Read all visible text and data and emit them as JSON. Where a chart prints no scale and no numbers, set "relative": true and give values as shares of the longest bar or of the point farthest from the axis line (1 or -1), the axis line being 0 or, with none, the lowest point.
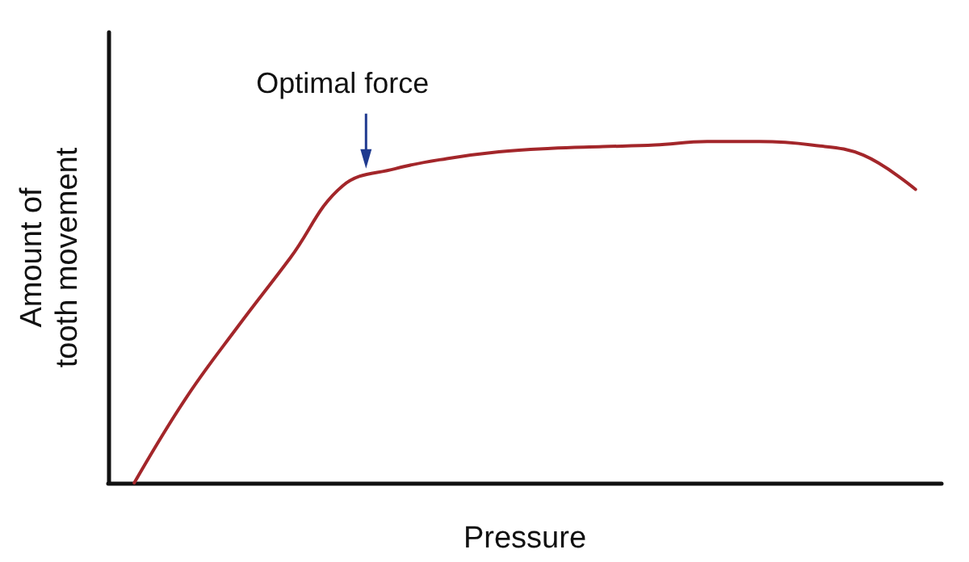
{
  "chart_data": {
    "type": "line",
    "relative": true,
    "xlabel": "Pressure",
    "ylabel": "Amount of tooth movement",
    "categories": [
      null,
      null,
      null,
      null,
      null,
      null,
      null,
      null,
      null,
      null,
      null,
      null,
      null,
      null,
      null,
      null
    ],
    "series": [
      {
        "color": "#a3262a",
        "values": [
          0,
          0.25,
          0.46,
          0.66,
          0.87,
          0.92,
          0.95,
          0.97,
          0.98,
          0.985,
          0.99,
          1,
          1,
          0.99,
          0.96,
          0.86
        ]
      }
    ],
    "annotations": [
      "Optimal force"
    ]
  }
}
